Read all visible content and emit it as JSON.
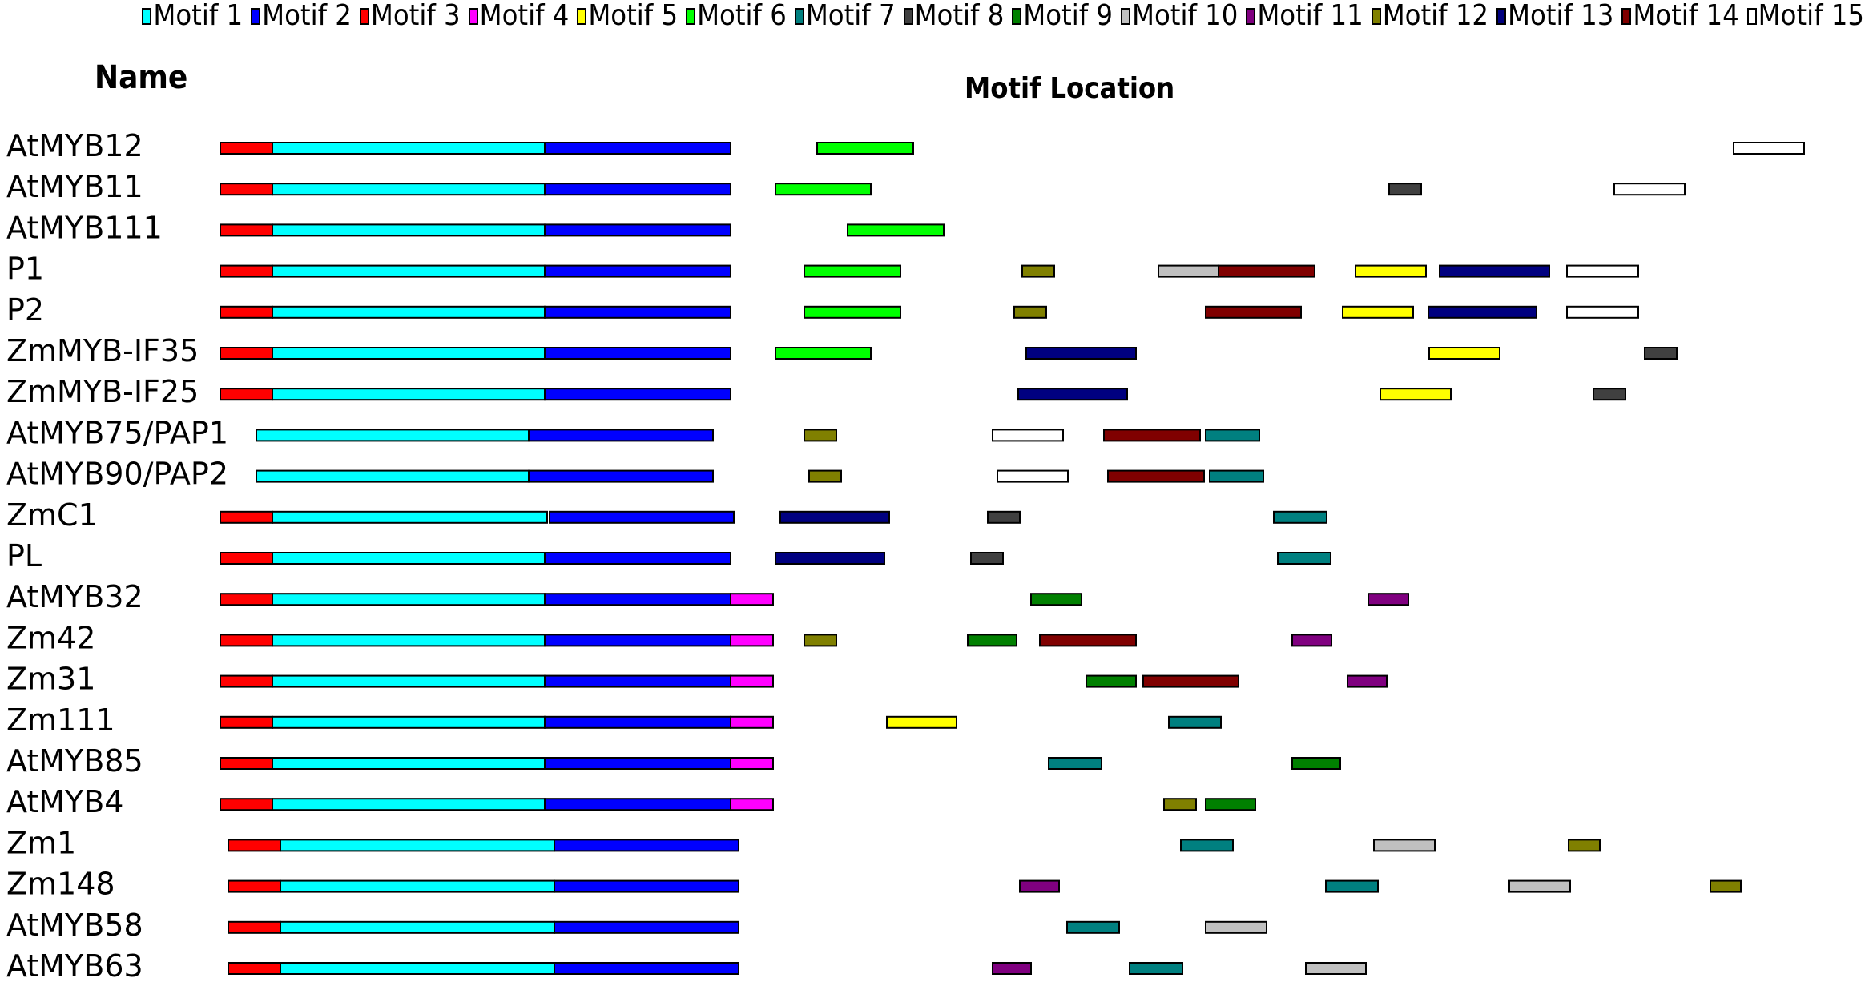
{
  "legend": [
    {
      "label": "Motif 1",
      "color": "#00FFFF"
    },
    {
      "label": "Motif 2",
      "color": "#0000FF"
    },
    {
      "label": "Motif 3",
      "color": "#FF0000"
    },
    {
      "label": "Motif 4",
      "color": "#FF00FF"
    },
    {
      "label": "Motif 5",
      "color": "#FFFF00"
    },
    {
      "label": "Motif 6",
      "color": "#00FF00"
    },
    {
      "label": "Motif 7",
      "color": "#008080"
    },
    {
      "label": "Motif 8",
      "color": "#404040"
    },
    {
      "label": "Motif 9",
      "color": "#008000"
    },
    {
      "label": "Motif 10",
      "color": "#C0C0C0"
    },
    {
      "label": "Motif 11",
      "color": "#800080"
    },
    {
      "label": "Motif 12",
      "color": "#808000"
    },
    {
      "label": "Motif 13",
      "color": "#000080"
    },
    {
      "label": "Motif 14",
      "color": "#800000"
    },
    {
      "label": "Motif 15",
      "color": "#FFFFFF"
    }
  ],
  "headers": {
    "name": "Name",
    "location": "Motif Location"
  },
  "rows": [
    {
      "name": "AtMYB12",
      "motifs": [
        [
          3,
          275,
          340
        ],
        [
          1,
          340,
          680
        ],
        [
          2,
          680,
          912
        ],
        [
          6,
          1020,
          1140
        ],
        [
          15,
          2164,
          2252
        ]
      ]
    },
    {
      "name": "AtMYB11",
      "motifs": [
        [
          3,
          275,
          340
        ],
        [
          1,
          340,
          680
        ],
        [
          2,
          680,
          912
        ],
        [
          6,
          968,
          1087
        ],
        [
          8,
          1734,
          1774
        ],
        [
          15,
          2015,
          2103
        ]
      ]
    },
    {
      "name": "AtMYB111",
      "motifs": [
        [
          3,
          275,
          340
        ],
        [
          1,
          340,
          680
        ],
        [
          2,
          680,
          912
        ],
        [
          6,
          1058,
          1178
        ]
      ]
    },
    {
      "name": "P1",
      "motifs": [
        [
          3,
          275,
          340
        ],
        [
          1,
          340,
          680
        ],
        [
          2,
          680,
          912
        ],
        [
          6,
          1004,
          1124
        ],
        [
          12,
          1276,
          1316
        ],
        [
          10,
          1446,
          1521
        ],
        [
          14,
          1521,
          1641
        ],
        [
          5,
          1692,
          1780
        ],
        [
          13,
          1797,
          1934
        ],
        [
          15,
          1956,
          2045
        ]
      ]
    },
    {
      "name": "P2",
      "motifs": [
        [
          3,
          275,
          340
        ],
        [
          1,
          340,
          680
        ],
        [
          2,
          680,
          912
        ],
        [
          6,
          1004,
          1124
        ],
        [
          12,
          1266,
          1306
        ],
        [
          14,
          1505,
          1624
        ],
        [
          5,
          1676,
          1764
        ],
        [
          13,
          1783,
          1918
        ],
        [
          15,
          1956,
          2045
        ]
      ]
    },
    {
      "name": "ZmMYB-IF35",
      "motifs": [
        [
          3,
          275,
          340
        ],
        [
          1,
          340,
          680
        ],
        [
          2,
          680,
          912
        ],
        [
          6,
          968,
          1087
        ],
        [
          13,
          1281,
          1418
        ],
        [
          5,
          1784,
          1872
        ],
        [
          8,
          2053,
          2093
        ]
      ]
    },
    {
      "name": "ZmMYB-IF25",
      "motifs": [
        [
          3,
          275,
          340
        ],
        [
          1,
          340,
          680
        ],
        [
          2,
          680,
          912
        ],
        [
          13,
          1271,
          1407
        ],
        [
          5,
          1723,
          1811
        ],
        [
          8,
          1989,
          2029
        ]
      ]
    },
    {
      "name": "AtMYB75/PAP1",
      "motifs": [
        [
          1,
          320,
          660
        ],
        [
          2,
          660,
          890
        ],
        [
          12,
          1004,
          1044
        ],
        [
          15,
          1239,
          1327
        ],
        [
          14,
          1378,
          1498
        ],
        [
          7,
          1505,
          1572
        ]
      ]
    },
    {
      "name": "AtMYB90/PAP2",
      "motifs": [
        [
          1,
          320,
          660
        ],
        [
          2,
          660,
          890
        ],
        [
          12,
          1010,
          1050
        ],
        [
          15,
          1245,
          1333
        ],
        [
          14,
          1383,
          1503
        ],
        [
          7,
          1510,
          1577
        ]
      ]
    },
    {
      "name": "ZmC1",
      "motifs": [
        [
          3,
          275,
          340
        ],
        [
          1,
          340,
          683
        ],
        [
          2,
          686,
          916
        ],
        [
          13,
          974,
          1110
        ],
        [
          8,
          1233,
          1273
        ],
        [
          7,
          1590,
          1656
        ]
      ]
    },
    {
      "name": "PL",
      "motifs": [
        [
          3,
          275,
          340
        ],
        [
          1,
          340,
          680
        ],
        [
          2,
          680,
          912
        ],
        [
          13,
          968,
          1104
        ],
        [
          8,
          1212,
          1252
        ],
        [
          7,
          1595,
          1661
        ]
      ]
    },
    {
      "name": "AtMYB32",
      "motifs": [
        [
          3,
          275,
          340
        ],
        [
          1,
          340,
          680
        ],
        [
          2,
          680,
          912
        ],
        [
          4,
          912,
          965
        ],
        [
          9,
          1287,
          1350
        ],
        [
          11,
          1708,
          1758
        ]
      ]
    },
    {
      "name": "Zm42",
      "motifs": [
        [
          3,
          275,
          340
        ],
        [
          1,
          340,
          680
        ],
        [
          2,
          680,
          912
        ],
        [
          4,
          912,
          965
        ],
        [
          12,
          1004,
          1044
        ],
        [
          9,
          1208,
          1269
        ],
        [
          14,
          1298,
          1418
        ],
        [
          11,
          1613,
          1662
        ]
      ]
    },
    {
      "name": "Zm31",
      "motifs": [
        [
          3,
          275,
          340
        ],
        [
          1,
          340,
          680
        ],
        [
          2,
          680,
          912
        ],
        [
          4,
          912,
          965
        ],
        [
          9,
          1356,
          1418
        ],
        [
          14,
          1427,
          1546
        ],
        [
          11,
          1682,
          1731
        ]
      ]
    },
    {
      "name": "Zm111",
      "motifs": [
        [
          3,
          275,
          340
        ],
        [
          1,
          340,
          680
        ],
        [
          2,
          680,
          912
        ],
        [
          4,
          912,
          965
        ],
        [
          5,
          1107,
          1194
        ],
        [
          7,
          1459,
          1524
        ]
      ]
    },
    {
      "name": "AtMYB85",
      "motifs": [
        [
          3,
          275,
          340
        ],
        [
          1,
          340,
          680
        ],
        [
          2,
          680,
          912
        ],
        [
          4,
          912,
          965
        ],
        [
          7,
          1309,
          1375
        ],
        [
          9,
          1613,
          1673
        ]
      ]
    },
    {
      "name": "AtMYB4",
      "motifs": [
        [
          3,
          275,
          340
        ],
        [
          1,
          340,
          680
        ],
        [
          2,
          680,
          912
        ],
        [
          4,
          912,
          965
        ],
        [
          12,
          1453,
          1493
        ],
        [
          9,
          1505,
          1567
        ]
      ]
    },
    {
      "name": "Zm1",
      "motifs": [
        [
          3,
          285,
          350
        ],
        [
          1,
          350,
          692
        ],
        [
          2,
          692,
          922
        ],
        [
          7,
          1474,
          1539
        ],
        [
          10,
          1715,
          1791
        ],
        [
          12,
          1958,
          1997
        ]
      ]
    },
    {
      "name": "Zm148",
      "motifs": [
        [
          3,
          285,
          350
        ],
        [
          1,
          350,
          692
        ],
        [
          2,
          692,
          922
        ],
        [
          11,
          1273,
          1322
        ],
        [
          7,
          1655,
          1720
        ],
        [
          10,
          1884,
          1960
        ],
        [
          12,
          2135,
          2173
        ]
      ]
    },
    {
      "name": "AtMYB58",
      "motifs": [
        [
          3,
          285,
          350
        ],
        [
          1,
          350,
          692
        ],
        [
          2,
          692,
          922
        ],
        [
          7,
          1332,
          1397
        ],
        [
          10,
          1505,
          1581
        ]
      ]
    },
    {
      "name": "AtMYB63",
      "motifs": [
        [
          3,
          285,
          350
        ],
        [
          1,
          350,
          692
        ],
        [
          2,
          692,
          922
        ],
        [
          11,
          1239,
          1287
        ],
        [
          7,
          1410,
          1476
        ],
        [
          10,
          1630,
          1705
        ]
      ]
    }
  ]
}
